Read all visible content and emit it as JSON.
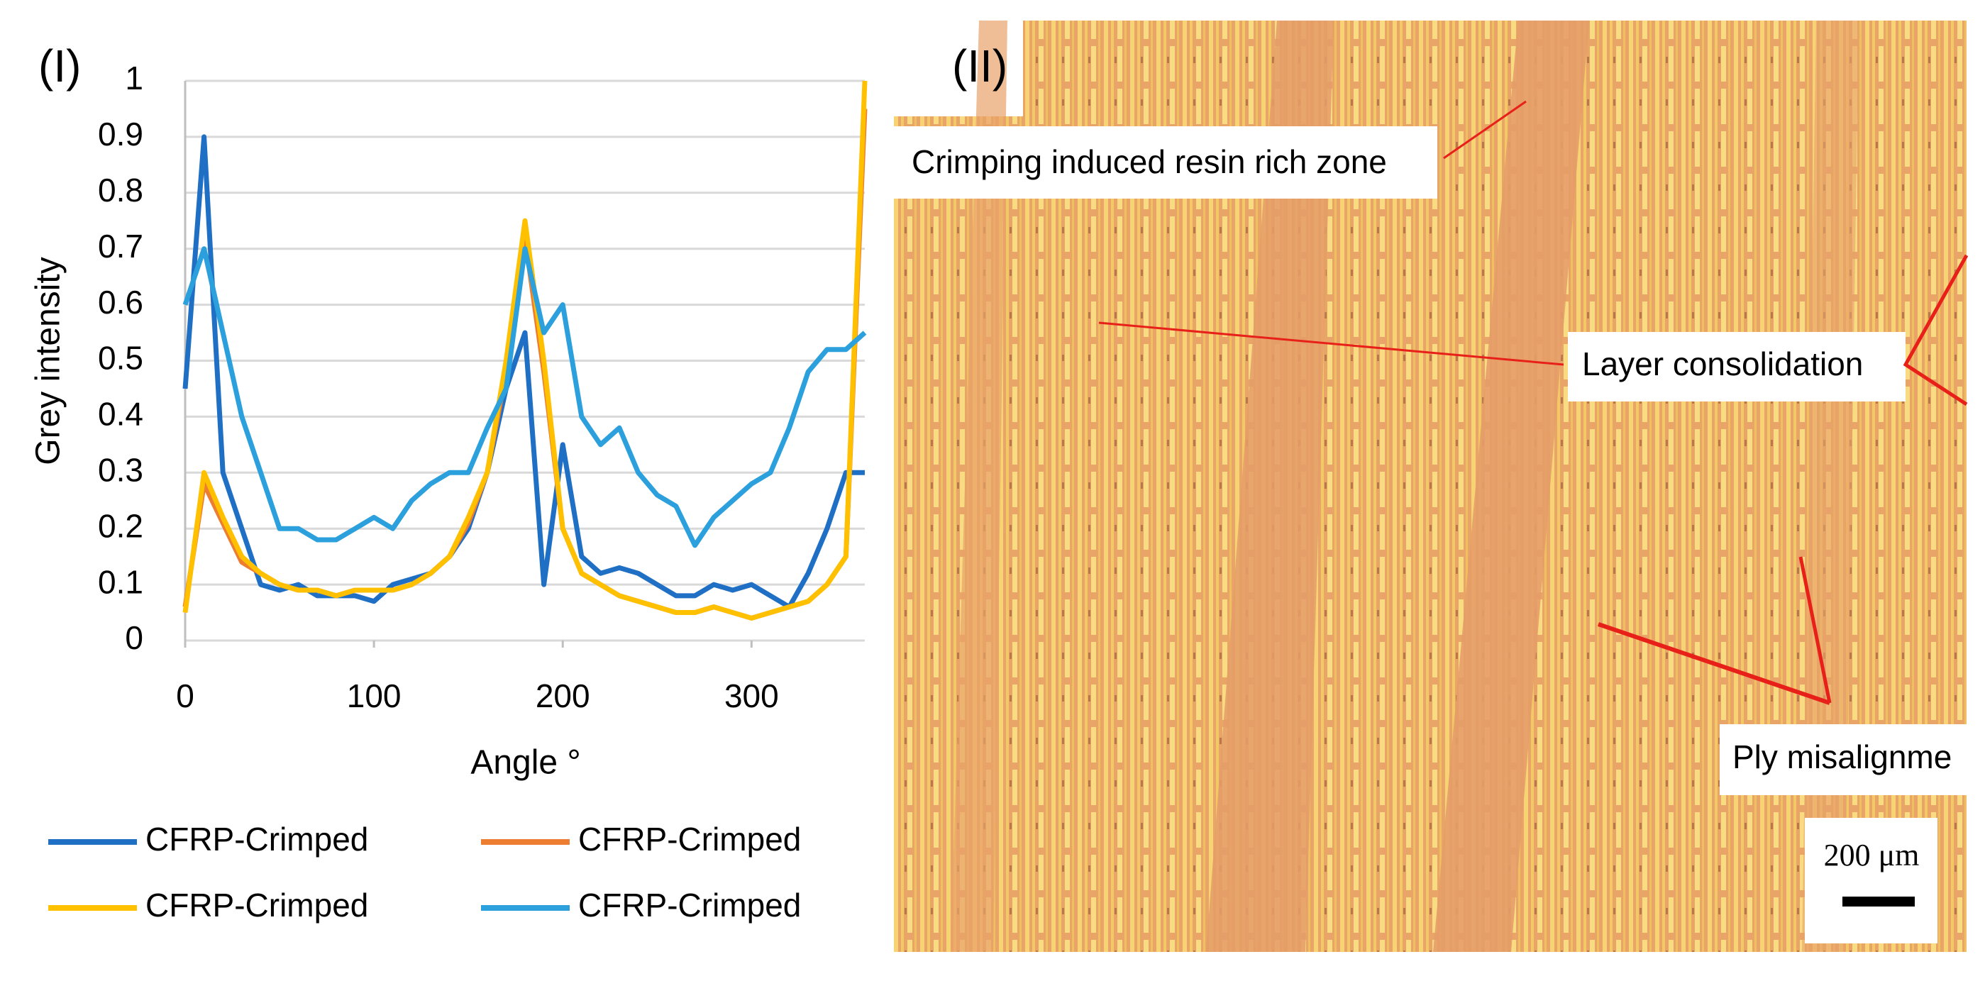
{
  "chart_data": {
    "type": "line",
    "panel_label": "(I)",
    "x_label": "Angle °",
    "y_label": "Grey intensity",
    "x": [
      0,
      10,
      20,
      30,
      40,
      50,
      60,
      70,
      80,
      90,
      100,
      110,
      120,
      130,
      140,
      150,
      160,
      170,
      180,
      190,
      200,
      210,
      220,
      230,
      240,
      250,
      260,
      270,
      280,
      290,
      300,
      310,
      320,
      330,
      340,
      350,
      360
    ],
    "series": [
      {
        "name": "CFRP-Crimped",
        "color": "#1f6fc5",
        "values": [
          0.45,
          0.9,
          0.3,
          0.2,
          0.1,
          0.09,
          0.1,
          0.08,
          0.08,
          0.08,
          0.07,
          0.1,
          0.11,
          0.12,
          0.15,
          0.2,
          0.3,
          0.45,
          0.55,
          0.1,
          0.35,
          0.15,
          0.12,
          0.13,
          0.12,
          0.1,
          0.08,
          0.08,
          0.1,
          0.09,
          0.1,
          0.08,
          0.06,
          0.12,
          0.2,
          0.3,
          0.3
        ]
      },
      {
        "name": "CFRP-Crimped",
        "color": "#ed7d31",
        "values": [
          0.06,
          0.28,
          0.21,
          0.14,
          0.12,
          0.1,
          0.09,
          0.09,
          0.08,
          0.09,
          0.09,
          0.09,
          0.1,
          0.12,
          0.15,
          0.21,
          0.3,
          0.48,
          0.72,
          0.48,
          0.2,
          0.12,
          0.1,
          0.08,
          0.07,
          0.06,
          0.05,
          0.05,
          0.06,
          0.05,
          0.04,
          0.05,
          0.06,
          0.07,
          0.1,
          0.15,
          0.95
        ]
      },
      {
        "name": "CFRP-Crimped",
        "color": "#ffc000",
        "values": [
          0.05,
          0.3,
          0.22,
          0.15,
          0.12,
          0.1,
          0.09,
          0.09,
          0.08,
          0.09,
          0.09,
          0.09,
          0.1,
          0.12,
          0.15,
          0.22,
          0.3,
          0.5,
          0.75,
          0.5,
          0.2,
          0.12,
          0.1,
          0.08,
          0.07,
          0.06,
          0.05,
          0.05,
          0.06,
          0.05,
          0.04,
          0.05,
          0.06,
          0.07,
          0.1,
          0.15,
          1
        ]
      },
      {
        "name": "CFRP-Crimped",
        "color": "#2ba0dc",
        "values": [
          0.6,
          0.7,
          0.55,
          0.4,
          0.3,
          0.2,
          0.2,
          0.18,
          0.18,
          0.2,
          0.22,
          0.2,
          0.25,
          0.28,
          0.3,
          0.3,
          0.38,
          0.45,
          0.7,
          0.55,
          0.6,
          0.4,
          0.35,
          0.38,
          0.3,
          0.26,
          0.24,
          0.17,
          0.22,
          0.25,
          0.28,
          0.3,
          0.38,
          0.48,
          0.52,
          0.52,
          0.55
        ]
      }
    ],
    "xlim": [
      0,
      360
    ],
    "xticks": [
      0,
      100,
      200,
      300
    ],
    "ylim": [
      0,
      1
    ],
    "yticks": [
      0,
      0.1,
      0.2,
      0.3,
      0.4,
      0.5,
      0.6,
      0.7,
      0.8,
      0.9,
      1
    ],
    "grid": true
  },
  "micrograph": {
    "panel_label": "(II)",
    "annotations": [
      "Crimping induced resin rich zone",
      "Layer consolidation",
      "Ply misalignme"
    ],
    "scale_bar": "200 μm"
  }
}
